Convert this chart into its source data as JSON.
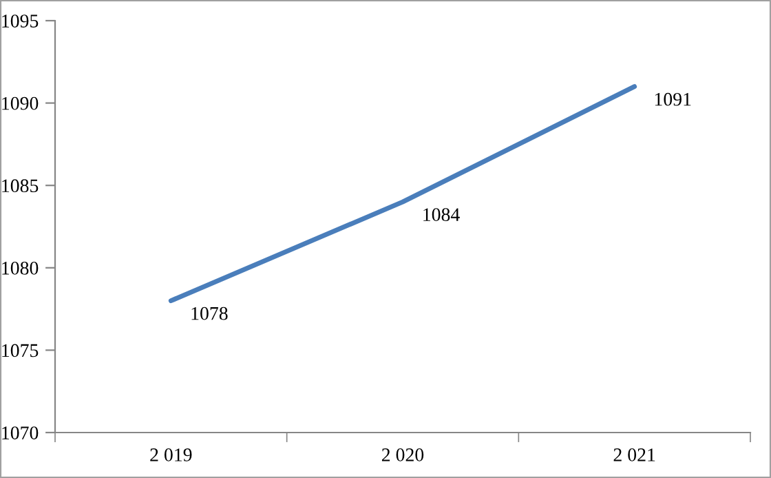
{
  "chart_data": {
    "type": "line",
    "categories": [
      "2 019",
      "2 020",
      "2 021"
    ],
    "series": [
      {
        "color": "#4a7ebb",
        "values": [
          1078,
          1084,
          1091
        ]
      }
    ],
    "ylim": [
      1070,
      1095
    ],
    "yticks": [
      1070,
      1075,
      1080,
      1085,
      1090,
      1095
    ],
    "data_labels": true,
    "grid": false,
    "legend": false,
    "marker": "none",
    "line_style": "solid"
  }
}
